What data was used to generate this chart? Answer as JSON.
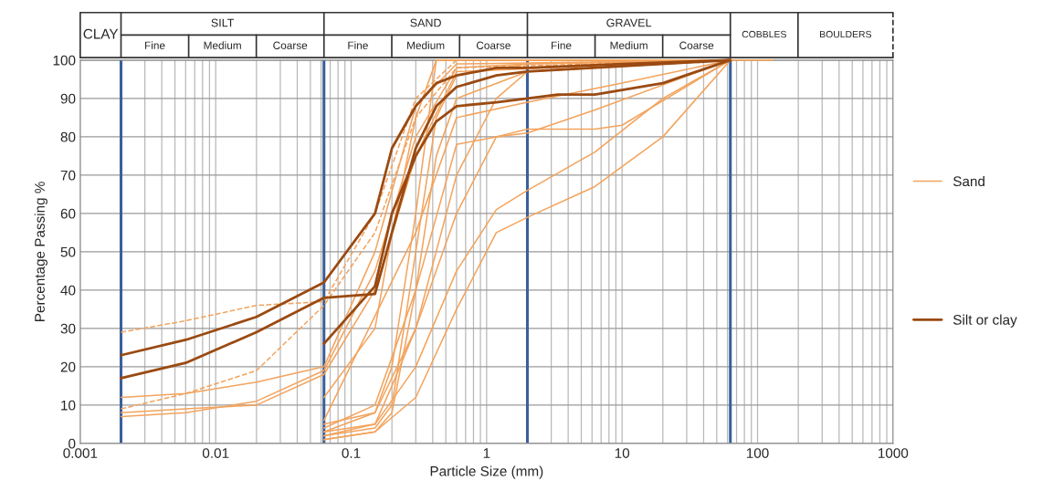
{
  "chart_data": {
    "type": "line",
    "xlabel": "Particle Size (mm)",
    "ylabel": "Percentage Passing %",
    "log": "x",
    "xlim": [
      0.001,
      1000
    ],
    "xticks": [
      0.001,
      0.01,
      0.1,
      1,
      10,
      100,
      1000
    ],
    "ylim": [
      0,
      100
    ],
    "yticks": [
      0,
      10,
      20,
      30,
      40,
      50,
      60,
      70,
      80,
      90,
      100
    ],
    "grid": true,
    "legend": "right",
    "marker": "none",
    "annotations": [
      "CLAY",
      "SILT",
      "SAND",
      "GRAVEL",
      "COBBLES",
      "BOULDERS",
      "Fine",
      "Medium",
      "Coarse",
      "Fine",
      "Medium",
      "Coarse",
      "Fine",
      "Medium",
      "Coarse"
    ],
    "ref_lines": [
      {
        "axis": "x",
        "value": 0.002,
        "color": "#3a5f9a"
      },
      {
        "axis": "x",
        "value": 0.063,
        "color": "#3a5f9a"
      },
      {
        "axis": "x",
        "value": 2,
        "color": "#3a5f9a"
      },
      {
        "axis": "x",
        "value": 63,
        "color": "#3a5f9a"
      }
    ],
    "series": [
      {
        "name": "Sand",
        "color": "#f3a35c",
        "x": [
          0.063,
          0.15,
          0.2,
          0.3,
          0.425,
          0.6,
          2,
          63,
          130
        ],
        "values": [
          2,
          4,
          10,
          50,
          85,
          96,
          99,
          100,
          100
        ]
      },
      {
        "color": "#f3a35c",
        "line_style": "dashed",
        "x": [
          0.002,
          0.006,
          0.02,
          0.063,
          0.15,
          0.3,
          0.6,
          63
        ],
        "values": [
          29,
          32,
          36,
          37,
          60,
          90,
          100,
          100
        ]
      },
      {
        "color": "#f3a35c",
        "line_style": "dashed",
        "x": [
          0.002,
          0.006,
          0.02,
          0.063,
          0.15,
          0.3,
          0.6,
          63
        ],
        "values": [
          9,
          13,
          19,
          36,
          55,
          85,
          98,
          100
        ]
      },
      {
        "color": "#f3a35c",
        "x": [
          0.002,
          0.006,
          0.02,
          0.063,
          0.15,
          0.3,
          0.6,
          63
        ],
        "values": [
          12,
          13,
          16,
          20,
          50,
          88,
          99,
          100
        ]
      },
      {
        "color": "#f3a35c",
        "x": [
          0.002,
          0.006,
          0.02,
          0.063,
          0.15,
          0.3,
          0.6,
          2,
          63
        ],
        "values": [
          7,
          8,
          11,
          19,
          45,
          80,
          98,
          99,
          100
        ]
      },
      {
        "color": "#f3a35c",
        "x": [
          0.002,
          0.006,
          0.02,
          0.063,
          0.15,
          0.3,
          0.6,
          63
        ],
        "values": [
          8,
          9,
          10,
          18,
          40,
          75,
          97,
          100
        ]
      },
      {
        "color": "#f3a35c",
        "x": [
          0.063,
          0.15,
          0.2,
          0.3,
          0.425,
          0.6,
          2,
          63
        ],
        "values": [
          1,
          3,
          8,
          40,
          75,
          90,
          97,
          100
        ]
      },
      {
        "color": "#f3a35c",
        "x": [
          0.063,
          0.15,
          0.2,
          0.3,
          0.425,
          63
        ],
        "values": [
          5,
          8,
          20,
          60,
          100,
          100
        ]
      },
      {
        "color": "#f3a35c",
        "x": [
          0.063,
          0.15,
          0.2,
          0.3,
          0.425,
          63
        ],
        "values": [
          12,
          30,
          55,
          85,
          100,
          100
        ]
      },
      {
        "color": "#f3a35c",
        "x": [
          0.063,
          0.15,
          0.2,
          0.3,
          0.6,
          1.18,
          2,
          63
        ],
        "values": [
          3,
          5,
          15,
          30,
          70,
          90,
          97,
          100
        ]
      },
      {
        "color": "#f3a35c",
        "x": [
          0.063,
          0.15,
          0.3,
          0.6,
          1.18,
          2,
          6.3,
          20,
          63
        ],
        "values": [
          1,
          3,
          12,
          35,
          55,
          59,
          67,
          80,
          100
        ]
      },
      {
        "color": "#f3a35c",
        "x": [
          0.063,
          0.15,
          0.3,
          0.6,
          1.18,
          2,
          6.3,
          20,
          63
        ],
        "values": [
          2,
          5,
          20,
          45,
          61,
          66,
          76,
          90,
          100
        ]
      },
      {
        "color": "#f3a35c",
        "x": [
          0.063,
          0.15,
          0.3,
          0.6,
          1.18,
          2,
          6.3,
          10,
          63
        ],
        "values": [
          3,
          8,
          30,
          60,
          80,
          82,
          82,
          83,
          100
        ]
      },
      {
        "color": "#f3a35c",
        "x": [
          0.063,
          0.15,
          0.3,
          0.6,
          1.18,
          2,
          6.3,
          63
        ],
        "values": [
          4,
          10,
          40,
          78,
          80,
          81,
          87,
          100
        ]
      },
      {
        "color": "#f3a35c",
        "x": [
          0.063,
          0.3,
          0.6,
          2,
          10,
          63
        ],
        "values": [
          6,
          55,
          85,
          89,
          94,
          100
        ]
      },
      {
        "name": "Silt or clay",
        "color": "#9a4a12",
        "x": [
          0.002,
          0.006,
          0.02,
          0.063,
          0.15,
          0.2,
          0.3,
          0.425,
          0.6,
          1.18,
          2,
          10,
          63
        ],
        "values": [
          23,
          27,
          33,
          42,
          60,
          77,
          88,
          94,
          96,
          98,
          98,
          99,
          100
        ]
      },
      {
        "color": "#9a4a12",
        "x": [
          0.002,
          0.006,
          0.02,
          0.063,
          0.15,
          0.2,
          0.3,
          0.425,
          0.6,
          1.18,
          2,
          63
        ],
        "values": [
          17,
          21,
          29,
          38,
          39,
          55,
          77,
          88,
          93,
          96,
          97,
          100
        ]
      },
      {
        "color": "#9a4a12",
        "x": [
          0.063,
          0.15,
          0.2,
          0.3,
          0.425,
          0.6,
          1.18,
          2,
          3.35,
          6.3,
          20,
          63
        ],
        "values": [
          26,
          41,
          60,
          75,
          84,
          88,
          89,
          90,
          91,
          91,
          94,
          100
        ]
      }
    ]
  }
}
